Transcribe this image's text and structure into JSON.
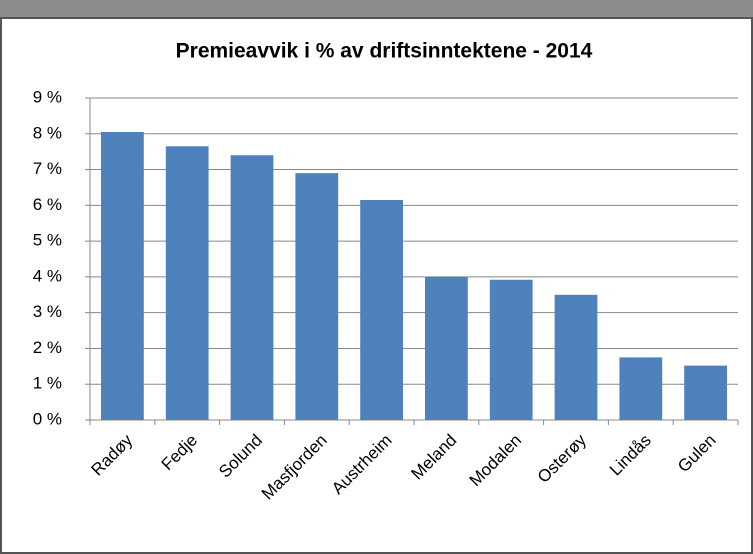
{
  "chart_data": {
    "type": "bar",
    "title": "Premieavvik i % av driftsinntektene - 2014",
    "categories": [
      "Radøy",
      "Fedje",
      "Solund",
      "Masfjorden",
      "Austrheim",
      "Meland",
      "Modalen",
      "Osterøy",
      "Lindås",
      "Gulen"
    ],
    "values": [
      8.05,
      7.65,
      7.4,
      6.9,
      6.15,
      4.0,
      3.92,
      3.5,
      1.75,
      1.52
    ],
    "color": "#4f81bd",
    "ylim": [
      0,
      9
    ],
    "yticks": [
      {
        "value": 0,
        "label": "0 %"
      },
      {
        "value": 1,
        "label": "1 %"
      },
      {
        "value": 2,
        "label": "2 %"
      },
      {
        "value": 3,
        "label": "3 %"
      },
      {
        "value": 4,
        "label": "4 %"
      },
      {
        "value": 5,
        "label": "5 %"
      },
      {
        "value": 6,
        "label": "6 %"
      },
      {
        "value": 7,
        "label": "7 %"
      },
      {
        "value": 8,
        "label": "8 %"
      },
      {
        "value": 9,
        "label": "9 %"
      }
    ],
    "grid": true
  }
}
